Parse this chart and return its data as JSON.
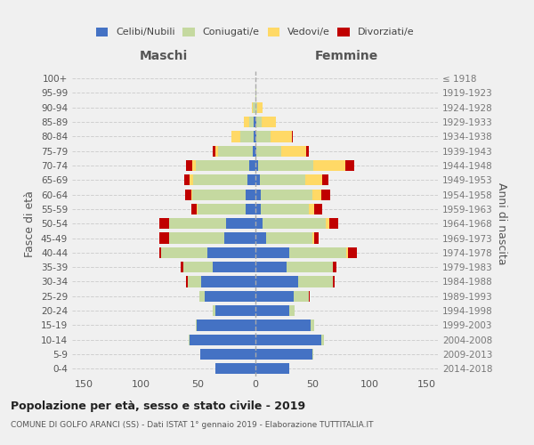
{
  "age_groups": [
    "0-4",
    "5-9",
    "10-14",
    "15-19",
    "20-24",
    "25-29",
    "30-34",
    "35-39",
    "40-44",
    "45-49",
    "50-54",
    "55-59",
    "60-64",
    "65-69",
    "70-74",
    "75-79",
    "80-84",
    "85-89",
    "90-94",
    "95-99",
    "100+"
  ],
  "birth_years": [
    "2014-2018",
    "2009-2013",
    "2004-2008",
    "1999-2003",
    "1994-1998",
    "1989-1993",
    "1984-1988",
    "1979-1983",
    "1974-1978",
    "1969-1973",
    "1964-1968",
    "1959-1963",
    "1954-1958",
    "1949-1953",
    "1944-1948",
    "1939-1943",
    "1934-1938",
    "1929-1933",
    "1924-1928",
    "1919-1923",
    "≤ 1918"
  ],
  "males": {
    "celibi": [
      35,
      48,
      57,
      51,
      35,
      44,
      47,
      37,
      42,
      27,
      25,
      8,
      8,
      7,
      5,
      2,
      1,
      1,
      0,
      0,
      0
    ],
    "coniugati": [
      0,
      0,
      1,
      1,
      2,
      5,
      12,
      26,
      40,
      48,
      50,
      42,
      47,
      47,
      47,
      30,
      12,
      4,
      2,
      0,
      0
    ],
    "vedovi": [
      0,
      0,
      0,
      0,
      0,
      0,
      0,
      0,
      0,
      0,
      0,
      1,
      1,
      3,
      3,
      3,
      8,
      5,
      1,
      0,
      0
    ],
    "divorziati": [
      0,
      0,
      0,
      0,
      0,
      0,
      1,
      2,
      2,
      9,
      9,
      5,
      5,
      5,
      5,
      2,
      0,
      0,
      0,
      0,
      0
    ]
  },
  "females": {
    "nubili": [
      30,
      50,
      58,
      49,
      30,
      34,
      38,
      28,
      30,
      10,
      7,
      5,
      5,
      4,
      3,
      1,
      1,
      1,
      0,
      0,
      0
    ],
    "coniugate": [
      0,
      1,
      2,
      3,
      5,
      13,
      30,
      40,
      50,
      40,
      55,
      42,
      45,
      40,
      48,
      22,
      13,
      5,
      2,
      1,
      0
    ],
    "vedove": [
      0,
      0,
      0,
      0,
      0,
      0,
      0,
      0,
      1,
      2,
      3,
      5,
      8,
      15,
      28,
      22,
      18,
      12,
      5,
      0,
      0
    ],
    "divorziate": [
      0,
      0,
      0,
      0,
      0,
      1,
      2,
      3,
      8,
      4,
      8,
      7,
      8,
      5,
      8,
      2,
      1,
      0,
      0,
      0,
      0
    ]
  },
  "colors": {
    "celibi": "#4472C4",
    "coniugati": "#C5D9A0",
    "vedovi": "#FFD966",
    "divorziati": "#C00000"
  },
  "xlim": 160,
  "title": "Popolazione per età, sesso e stato civile - 2019",
  "subtitle": "COMUNE DI GOLFO ARANCI (SS) - Dati ISTAT 1° gennaio 2019 - Elaborazione TUTTITALIA.IT",
  "ylabel_left": "Fasce di età",
  "ylabel_right": "Anni di nascita",
  "xlabel_left": "Maschi",
  "xlabel_right": "Femmine",
  "bg_color": "#f0f0f0",
  "grid_color": "#cccccc"
}
